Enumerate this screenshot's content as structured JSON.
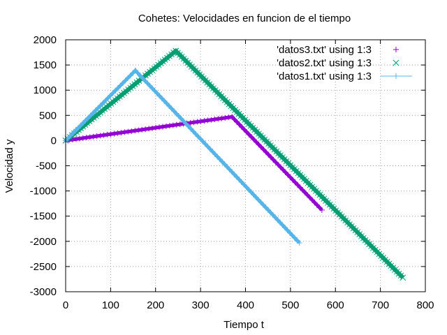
{
  "chart_data": {
    "type": "scatter",
    "title": "Cohetes: Velocidades en funcion de el tiempo",
    "xlabel": "Tiempo t",
    "ylabel": "Velocidad y",
    "xlim": [
      0,
      800
    ],
    "ylim": [
      -3000,
      2000
    ],
    "xticks": [
      0,
      100,
      200,
      300,
      400,
      500,
      600,
      700,
      800
    ],
    "yticks": [
      -3000,
      -2500,
      -2000,
      -1500,
      -1000,
      -500,
      0,
      500,
      1000,
      1500,
      2000
    ],
    "grid": true,
    "legend_position": "top-right",
    "series": [
      {
        "name": "'datos3.txt' using 1:3",
        "marker": "plus",
        "color": "#9400d3",
        "points": [
          [
            0,
            0
          ],
          [
            370,
            470
          ],
          [
            570,
            -1380
          ]
        ]
      },
      {
        "name": "'datos2.txt' using 1:3",
        "marker": "x",
        "color": "#009e73",
        "points": [
          [
            0,
            0
          ],
          [
            245,
            1780
          ],
          [
            750,
            -2720
          ]
        ]
      },
      {
        "name": "'datos1.txt' using 1:3",
        "marker": "plus-line",
        "color": "#56b4e9",
        "points": [
          [
            0,
            0
          ],
          [
            155,
            1390
          ],
          [
            520,
            -2030
          ]
        ]
      }
    ]
  }
}
